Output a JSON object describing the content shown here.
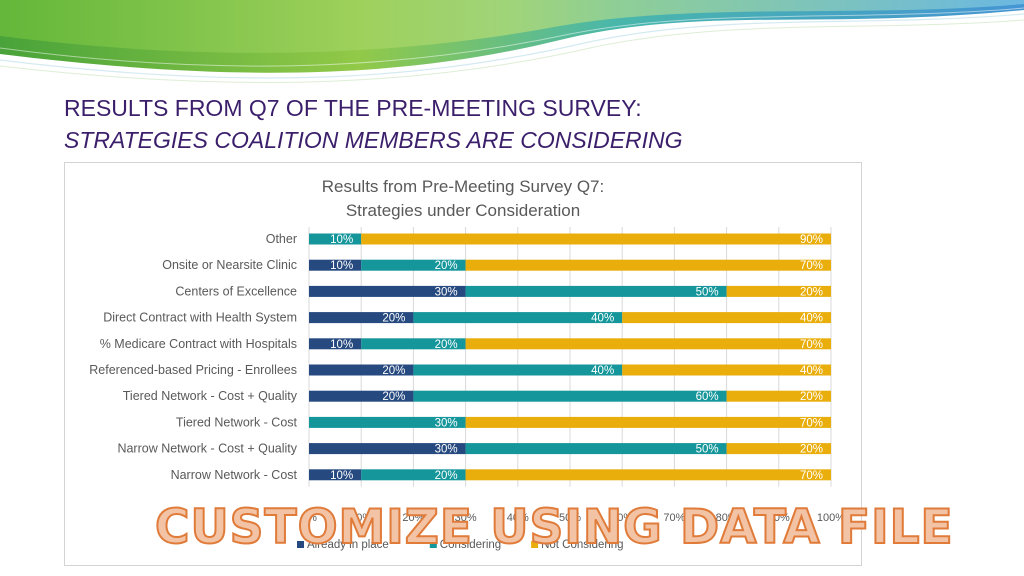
{
  "slide": {
    "title_line1": "RESULTS FROM Q7 OF THE PRE-MEETING SURVEY:",
    "title_line2": "STRATEGIES COALITION MEMBERS ARE CONSIDERING",
    "watermark": "CUSTOMIZE USING DATA FILE"
  },
  "colors": {
    "title": "#3b1f6b",
    "series_already": "#26497f",
    "series_considering": "#14969a",
    "series_not": "#e9ad0c",
    "watermark_fill": "#f2c3a4",
    "watermark_stroke": "#e07b3a"
  },
  "chart_data": {
    "type": "bar",
    "orientation": "horizontal",
    "stacked": true,
    "title": [
      "Results from Pre-Meeting Survey Q7:",
      "Strategies under Consideration"
    ],
    "categories": [
      "Other",
      "Onsite or Nearsite Clinic",
      "Centers of Excellence",
      "Direct Contract with Health System",
      "% Medicare Contract with Hospitals",
      "Referenced-based Pricing - Enrollees",
      "Tiered Network - Cost + Quality",
      "Tiered Network - Cost",
      "Narrow Network - Cost + Quality",
      "Narrow Network - Cost"
    ],
    "series": [
      {
        "name": "Already in place",
        "values": [
          0,
          10,
          30,
          20,
          10,
          20,
          20,
          0,
          30,
          10
        ]
      },
      {
        "name": "Considering",
        "values": [
          10,
          20,
          50,
          40,
          20,
          40,
          60,
          30,
          50,
          20
        ]
      },
      {
        "name": "Not Considering",
        "values": [
          90,
          70,
          20,
          40,
          70,
          40,
          20,
          70,
          20,
          70
        ]
      }
    ],
    "xlim": [
      0,
      100
    ],
    "x_ticks": [
      "0%",
      "10%",
      "20%",
      "30%",
      "40%",
      "50%",
      "60%",
      "70%",
      "80%",
      "90%",
      "100%"
    ],
    "grid": true,
    "legend_position": "bottom",
    "data_label_suffix": "%"
  }
}
